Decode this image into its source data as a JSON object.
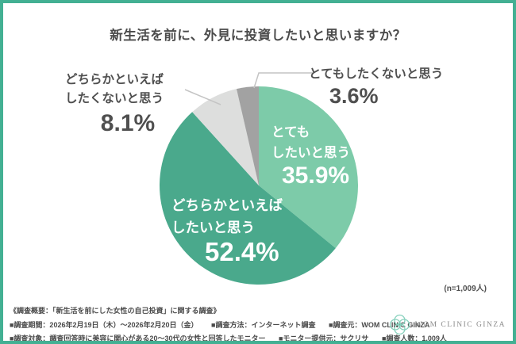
{
  "title": "新生活を前に、外見に投資したいと思いますか？",
  "chart_data": {
    "type": "pie",
    "title": "新生活を前に、外見に投資したいと思いますか？",
    "categories": [
      "とてもしたいと思う",
      "どちらかといえばしたいと思う",
      "どちらかといえばしたくないと思う",
      "とてもしたくないと思う"
    ],
    "values": [
      35.9,
      52.4,
      8.1,
      3.6
    ],
    "unit": "%",
    "colors": [
      "#7dcba9",
      "#4aa98c",
      "#dddedd",
      "#a2a2a2"
    ],
    "slice_ids": [
      "very-want",
      "somewhat-want",
      "somewhat-not-want",
      "very-not-want"
    ],
    "start_angle_deg": 0,
    "direction": "clockwise",
    "sample_size": "1,009",
    "legend_position": "labels-on-and-around-slices"
  },
  "slice_labels": {
    "very_want": {
      "line1": "とても",
      "line2": "したいと思う",
      "pct": "35.9%"
    },
    "somewhat_want": {
      "line1": "どちらかといえば",
      "line2": "したいと思う",
      "pct": "52.4%"
    },
    "somewhat_not": {
      "line1": "どちらかといえば",
      "line2": "したくないと思う",
      "pct": "8.1%"
    },
    "very_not": {
      "line1": "とてもしたくないと思う",
      "pct": "3.6%"
    }
  },
  "n_note": "(n=1,009人)",
  "footer": {
    "line1": "《調査概要：「新生活を前にした女性の自己投資」に関する調査》",
    "line2_items": [
      "■調査期間：2026年2月19日（木）～2026年2月20日（金）",
      "■調査方法：インターネット調査",
      "■調査元：WOM CLINIC GINZA"
    ],
    "line3_items": [
      "■調査対象：調査回答時に美容に関心がある20～30代の女性と回答したモニター",
      "■モニター提供元：サクリサ",
      "■調査人数：1,009人"
    ]
  },
  "logo": {
    "text": "WOM CLINIC GINZA",
    "icon": "quatrefoil-flower-icon"
  },
  "colors": {
    "frame_border": "#43b093",
    "title_text": "#4b4b4b",
    "outside_label_text": "#4f4f4f",
    "inside_label_text": "#ffffff",
    "leader_line": "#c4c4c4",
    "logo_icon": "#87d1bd",
    "logo_text": "#8a8a8a"
  }
}
